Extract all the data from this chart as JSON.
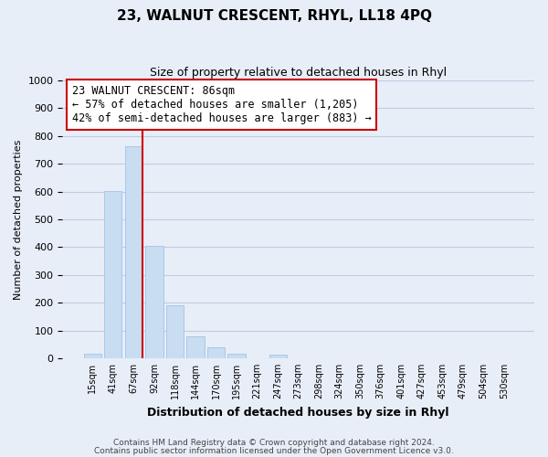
{
  "title1": "23, WALNUT CRESCENT, RHYL, LL18 4PQ",
  "title2": "Size of property relative to detached houses in Rhyl",
  "xlabel": "Distribution of detached houses by size in Rhyl",
  "ylabel": "Number of detached properties",
  "bar_labels": [
    "15sqm",
    "41sqm",
    "67sqm",
    "92sqm",
    "118sqm",
    "144sqm",
    "170sqm",
    "195sqm",
    "221sqm",
    "247sqm",
    "273sqm",
    "298sqm",
    "324sqm",
    "350sqm",
    "376sqm",
    "401sqm",
    "427sqm",
    "453sqm",
    "479sqm",
    "504sqm",
    "530sqm"
  ],
  "bar_values": [
    15,
    601,
    763,
    403,
    190,
    78,
    40,
    17,
    0,
    13,
    0,
    0,
    0,
    0,
    0,
    0,
    0,
    0,
    0,
    0,
    0
  ],
  "bar_color": "#c8ddf0",
  "bar_edge_color": "#a8c8e8",
  "vline_color": "#cc0000",
  "annotation_line1": "23 WALNUT CRESCENT: 86sqm",
  "annotation_line2": "← 57% of detached houses are smaller (1,205)",
  "annotation_line3": "42% of semi-detached houses are larger (883) →",
  "annotation_box_color": "#ffffff",
  "annotation_box_edge": "#cc0000",
  "ylim": [
    0,
    1000
  ],
  "yticks": [
    0,
    100,
    200,
    300,
    400,
    500,
    600,
    700,
    800,
    900,
    1000
  ],
  "footer1": "Contains HM Land Registry data © Crown copyright and database right 2024.",
  "footer2": "Contains public sector information licensed under the Open Government Licence v3.0.",
  "bg_color": "#e8eef8",
  "plot_bg_color": "#e8eef8",
  "grid_color": "#c0cce0",
  "title1_fontsize": 11,
  "title2_fontsize": 9,
  "xlabel_fontsize": 9,
  "ylabel_fontsize": 8
}
